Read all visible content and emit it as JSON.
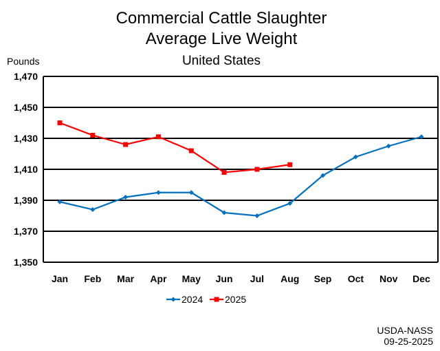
{
  "chart_data": {
    "type": "line",
    "title": [
      "Commercial Cattle Slaughter",
      "Average Live Weight"
    ],
    "subtitle": "United States",
    "ylabel": "Pounds",
    "xlabel": "",
    "categories": [
      "Jan",
      "Feb",
      "Mar",
      "Apr",
      "May",
      "Jun",
      "Jul",
      "Aug",
      "Sep",
      "Oct",
      "Nov",
      "Dec"
    ],
    "ylim": [
      1350,
      1470
    ],
    "yticks": [
      1350,
      1370,
      1390,
      1410,
      1430,
      1450,
      1470
    ],
    "ytick_labels": [
      "1,350",
      "1,370",
      "1,390",
      "1,410",
      "1,430",
      "1,450",
      "1,470"
    ],
    "grid": true,
    "legend": "bottom",
    "series": [
      {
        "name": "2024",
        "color": "#0070C0",
        "marker": "diamond",
        "values": [
          1389,
          1384,
          1392,
          1395,
          1395,
          1382,
          1380,
          1388,
          1406,
          1418,
          1425,
          1431
        ]
      },
      {
        "name": "2025",
        "color": "#FF0000",
        "marker": "square",
        "values": [
          1440,
          1432,
          1426,
          1431,
          1422,
          1408,
          1410,
          1413,
          null,
          null,
          null,
          null
        ]
      }
    ],
    "source": [
      "USDA-NASS",
      "09-25-2025"
    ]
  }
}
